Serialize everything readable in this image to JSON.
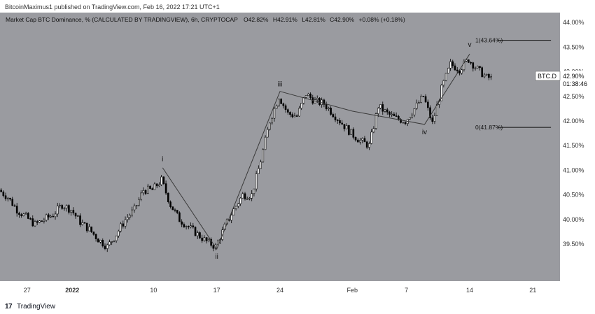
{
  "header": {
    "published_text": "BitcoinMaximus1 published on TradingView.com, Feb 16, 2022 17:21 UTC+1"
  },
  "legend": {
    "title": "Market Cap BTC Dominance, % (CALCULATED BY TRADINGVIEW), 6h, CRYPTOCAP",
    "o_label": "O",
    "o_value": "42.82%",
    "h_label": "H",
    "h_value": "42.91%",
    "l_label": "L",
    "l_value": "42.81%",
    "c_label": "C",
    "c_value": "42.90%",
    "change": "+0.08% (+0.18%)"
  },
  "price_tag": {
    "symbol": "BTC.D",
    "value": "42.90%",
    "countdown": "01:38:46"
  },
  "footer": {
    "logo": "17",
    "brand": "TradingView"
  },
  "colors": {
    "background": "#9a9ba0",
    "axis_background": "#ffffff",
    "up_candle": "#ffffff",
    "down_candle": "#000000",
    "wave_line": "#3a3a3a"
  },
  "chart_data": {
    "type": "candlestick",
    "title": "Market Cap BTC Dominance, % (CALCULATED BY TRADINGVIEW), 6h, CRYPTOCAP",
    "x_ticks": [
      {
        "label": "27",
        "date": "2021-12-27"
      },
      {
        "label": "2022",
        "date": "2022-01-01"
      },
      {
        "label": "10",
        "date": "2022-01-10"
      },
      {
        "label": "17",
        "date": "2022-01-17"
      },
      {
        "label": "24",
        "date": "2022-01-24"
      },
      {
        "label": "Feb",
        "date": "2022-02-01"
      },
      {
        "label": "7",
        "date": "2022-02-07"
      },
      {
        "label": "14",
        "date": "2022-02-14"
      },
      {
        "label": "21",
        "date": "2022-02-21"
      }
    ],
    "y_ticks": [
      "39.50%",
      "40.00%",
      "40.50%",
      "41.00%",
      "41.50%",
      "42.00%",
      "42.50%",
      "43.00%",
      "43.50%",
      "44.00%"
    ],
    "y_tick_values": [
      39.5,
      40.0,
      40.5,
      41.0,
      41.5,
      42.0,
      42.5,
      43.0,
      43.5,
      44.0
    ],
    "ylim": [
      38.75,
      44.2
    ],
    "xlim": [
      "2021-12-24",
      "2022-02-24"
    ],
    "path_points": [
      [
        "2021-12-24",
        40.6
      ],
      [
        "2021-12-25",
        40.45
      ],
      [
        "2021-12-26",
        40.2
      ],
      [
        "2021-12-27",
        40.05
      ],
      [
        "2021-12-28",
        39.9
      ],
      [
        "2021-12-29",
        40.0
      ],
      [
        "2021-12-30",
        40.1
      ],
      [
        "2021-12-31",
        40.3
      ],
      [
        "2022-01-01",
        40.2
      ],
      [
        "2022-01-02",
        39.95
      ],
      [
        "2022-01-03",
        39.8
      ],
      [
        "2022-01-04",
        39.6
      ],
      [
        "2022-01-05",
        39.45
      ],
      [
        "2022-01-06",
        39.7
      ],
      [
        "2022-01-07",
        40.0
      ],
      [
        "2022-01-08",
        40.2
      ],
      [
        "2022-01-09",
        40.6
      ],
      [
        "2022-01-10",
        40.6
      ],
      [
        "2022-01-11",
        40.8
      ],
      [
        "2022-01-12",
        40.3
      ],
      [
        "2022-01-13",
        40.0
      ],
      [
        "2022-01-14",
        39.85
      ],
      [
        "2022-01-15",
        39.7
      ],
      [
        "2022-01-16",
        39.55
      ],
      [
        "2022-01-17",
        39.45
      ],
      [
        "2022-01-18",
        39.85
      ],
      [
        "2022-01-19",
        40.2
      ],
      [
        "2022-01-20",
        40.5
      ],
      [
        "2022-01-21",
        40.5
      ],
      [
        "2022-01-22",
        41.2
      ],
      [
        "2022-01-23",
        42.0
      ],
      [
        "2022-01-24",
        42.5
      ],
      [
        "2022-01-25",
        42.15
      ],
      [
        "2022-01-26",
        42.1
      ],
      [
        "2022-01-27",
        42.55
      ],
      [
        "2022-01-28",
        42.4
      ],
      [
        "2022-01-29",
        42.35
      ],
      [
        "2022-01-30",
        42.15
      ],
      [
        "2022-01-31",
        41.95
      ],
      [
        "2022-02-01",
        41.75
      ],
      [
        "2022-02-02",
        41.6
      ],
      [
        "2022-02-03",
        41.5
      ],
      [
        "2022-02-04",
        42.3
      ],
      [
        "2022-02-05",
        42.15
      ],
      [
        "2022-02-06",
        42.05
      ],
      [
        "2022-02-07",
        42.0
      ],
      [
        "2022-02-08",
        42.25
      ],
      [
        "2022-02-09",
        42.5
      ],
      [
        "2022-02-10",
        41.95
      ],
      [
        "2022-02-11",
        42.65
      ],
      [
        "2022-02-12",
        43.15
      ],
      [
        "2022-02-13",
        43.05
      ],
      [
        "2022-02-14",
        43.25
      ],
      [
        "2022-02-15",
        43.05
      ],
      [
        "2022-02-16",
        42.88
      ]
    ],
    "wave_lines": [
      [
        "2022-01-11",
        41.05
      ],
      [
        "2022-01-17",
        39.4
      ],
      [
        "2022-01-24",
        42.6
      ],
      [
        "2022-02-01",
        42.2
      ],
      [
        "2022-02-09",
        41.93
      ],
      [
        "2022-02-14",
        43.36
      ]
    ],
    "wave_labels": [
      {
        "text": "i",
        "date": "2022-01-11",
        "value": 41.1,
        "position": "above"
      },
      {
        "text": "ii",
        "date": "2022-01-17",
        "value": 39.4,
        "position": "below"
      },
      {
        "text": "iii",
        "date": "2022-01-24",
        "value": 42.62,
        "position": "above"
      },
      {
        "text": "iv",
        "date": "2022-02-09",
        "value": 41.93,
        "position": "below"
      },
      {
        "text": "v",
        "date": "2022-02-14",
        "value": 43.42,
        "position": "above"
      }
    ],
    "fib_levels": [
      {
        "label": "1(43.64%)",
        "value": 43.64,
        "from": "2022-02-14",
        "to": "2022-02-23"
      },
      {
        "label": "0(41.87%)",
        "value": 41.87,
        "from": "2022-02-14",
        "to": "2022-02-23"
      }
    ],
    "last_value": 42.9,
    "last_date": "2022-02-16"
  }
}
